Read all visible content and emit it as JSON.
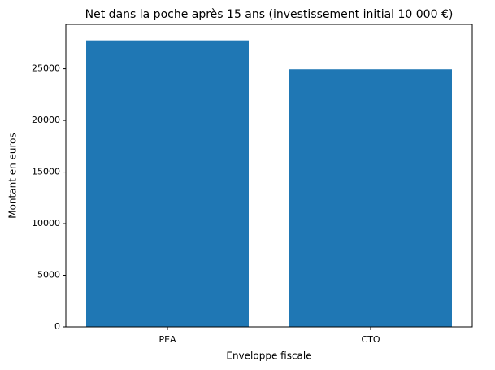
{
  "chart_data": {
    "type": "bar",
    "title": "Net dans la poche après 15 ans (investissement initial 10 000 €)",
    "x_label": "Enveloppe fiscale",
    "y_label": "Montant en euros",
    "categories": [
      "PEA",
      "CTO"
    ],
    "values": [
      27750,
      24950
    ],
    "color": "#1f77b4",
    "ylim": [
      0,
      29300
    ],
    "yticks": [
      0,
      5000,
      10000,
      15000,
      20000,
      25000
    ],
    "grid": false
  }
}
